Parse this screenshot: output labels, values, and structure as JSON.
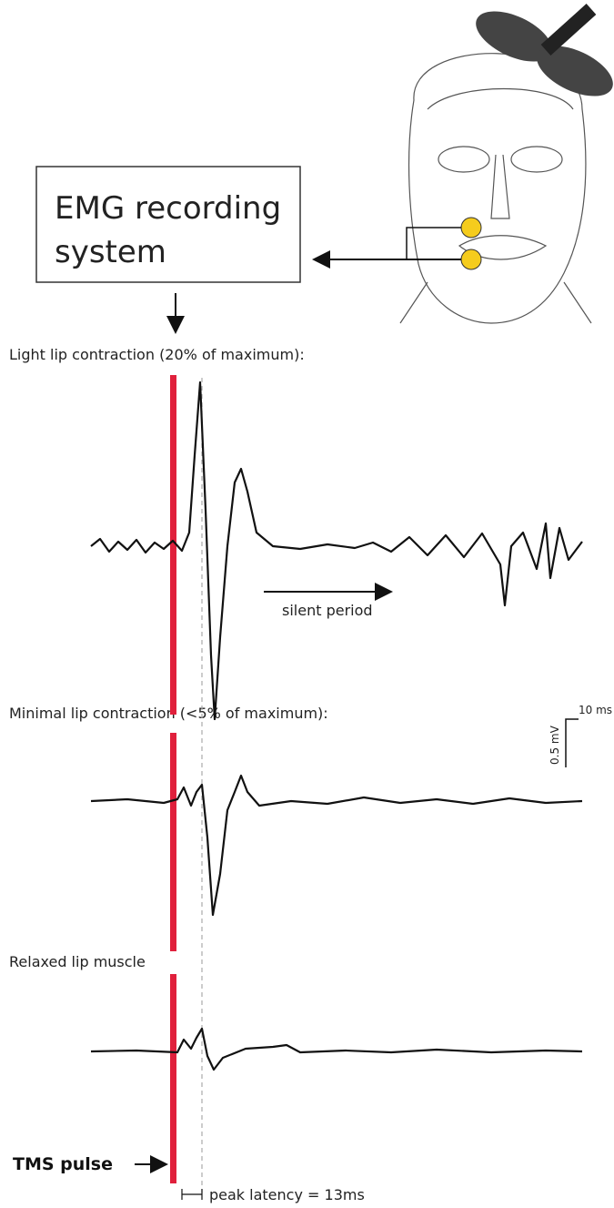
{
  "box": {
    "label_lines": [
      "EMG recording",
      "system"
    ]
  },
  "panels": [
    {
      "title": "Light lip contraction (20% of maximum):",
      "annotation": "silent period"
    },
    {
      "title": "Minimal lip contraction (<5% of maximum):"
    },
    {
      "title": "Relaxed lip muscle"
    }
  ],
  "scale_bar": {
    "time": "10 ms",
    "amplitude": "0.5 mV"
  },
  "stimulus_label": "TMS pulse",
  "latency_label": "peak latency = 13ms"
}
